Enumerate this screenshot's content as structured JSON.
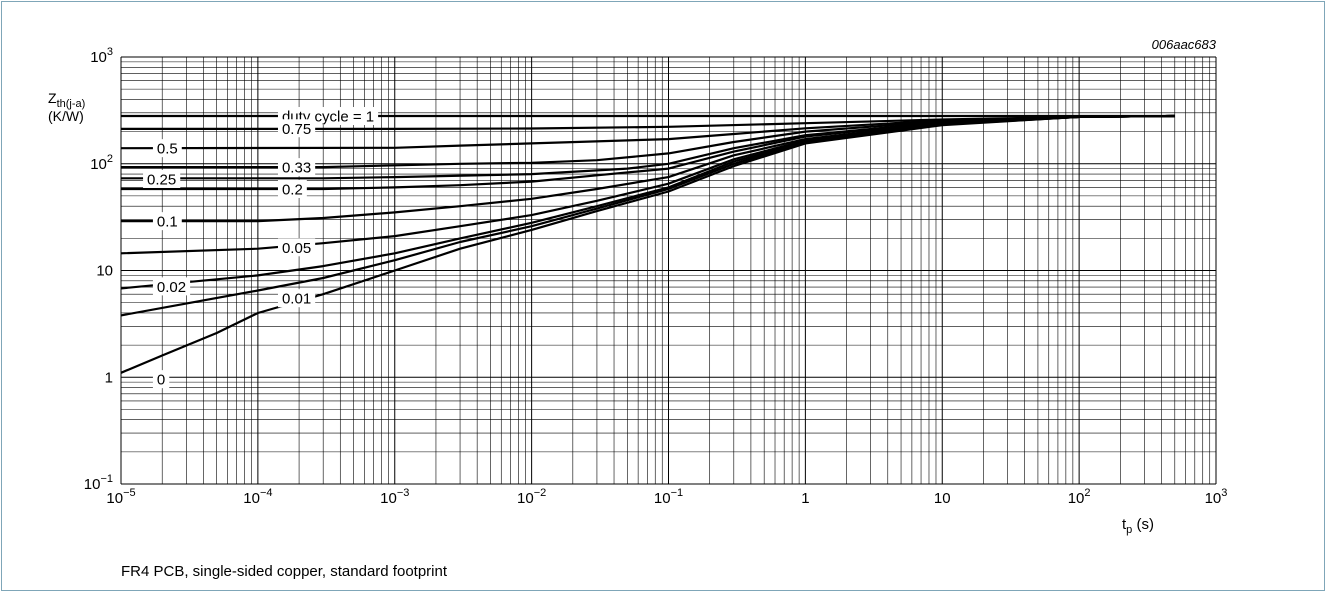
{
  "chart_data": {
    "type": "line",
    "figure_code": "006aac683",
    "ylabel_main": "Z",
    "ylabel_sub": "th(j-a)",
    "yunit": "(K/W)",
    "xlabel_main": "t",
    "xlabel_sub": "p",
    "xunit": "(s)",
    "x_scale": "log",
    "y_scale": "log",
    "xlim": [
      1e-05,
      1000
    ],
    "ylim": [
      0.1,
      1000
    ],
    "grid": true,
    "x_ticks": [
      {
        "value": 1e-05,
        "base": "10",
        "exp": "−5"
      },
      {
        "value": 0.0001,
        "base": "10",
        "exp": "−4"
      },
      {
        "value": 0.001,
        "base": "10",
        "exp": "−3"
      },
      {
        "value": 0.01,
        "base": "10",
        "exp": "−2"
      },
      {
        "value": 0.1,
        "base": "10",
        "exp": "−1"
      },
      {
        "value": 1,
        "base": "1",
        "exp": ""
      },
      {
        "value": 10,
        "base": "10",
        "exp": ""
      },
      {
        "value": 100,
        "base": "10",
        "exp": "2"
      },
      {
        "value": 1000,
        "base": "10",
        "exp": "3"
      }
    ],
    "y_ticks": [
      {
        "value": 1000,
        "base": "10",
        "exp": "3"
      },
      {
        "value": 100,
        "base": "10",
        "exp": "2"
      },
      {
        "value": 10,
        "base": "10",
        "exp": ""
      },
      {
        "value": 1,
        "base": "1",
        "exp": ""
      },
      {
        "value": 0.1,
        "base": "10",
        "exp": "−1"
      }
    ],
    "series": [
      {
        "name": "duty cycle = 1",
        "label_at": [
          0.00015,
          280
        ],
        "points": [
          [
            1e-05,
            280
          ],
          [
            500,
            280
          ]
        ]
      },
      {
        "name": "0.75",
        "label_at": [
          0.00015,
          215
        ],
        "points": [
          [
            1e-05,
            212
          ],
          [
            0.001,
            212
          ],
          [
            0.01,
            214
          ],
          [
            0.1,
            222
          ],
          [
            1,
            240
          ],
          [
            10,
            260
          ],
          [
            100,
            275
          ],
          [
            500,
            280
          ]
        ]
      },
      {
        "name": "0.5",
        "label_at": [
          1.83e-05,
          140
        ],
        "points": [
          [
            1e-05,
            140
          ],
          [
            0.001,
            141
          ],
          [
            0.003,
            148
          ],
          [
            0.01,
            155
          ],
          [
            0.1,
            170
          ],
          [
            0.3,
            190
          ],
          [
            1,
            215
          ],
          [
            10,
            255
          ],
          [
            100,
            275
          ],
          [
            500,
            280
          ]
        ]
      },
      {
        "name": "0.33",
        "label_at": [
          0.00015,
          93
        ],
        "points": [
          [
            1e-05,
            93
          ],
          [
            0.0003,
            93
          ],
          [
            0.003,
            100
          ],
          [
            0.01,
            102
          ],
          [
            0.03,
            108
          ],
          [
            0.1,
            125
          ],
          [
            0.3,
            160
          ],
          [
            1,
            200
          ],
          [
            10,
            250
          ],
          [
            100,
            275
          ],
          [
            500,
            280
          ]
        ]
      },
      {
        "name": "0.25",
        "label_at": [
          1.55e-05,
          72
        ],
        "points": [
          [
            1e-05,
            73
          ],
          [
            0.0003,
            73
          ],
          [
            0.001,
            75
          ],
          [
            0.01,
            80
          ],
          [
            0.05,
            90
          ],
          [
            0.1,
            100
          ],
          [
            0.3,
            140
          ],
          [
            1,
            185
          ],
          [
            10,
            245
          ],
          [
            100,
            275
          ],
          [
            500,
            280
          ]
        ]
      },
      {
        "name": "0.2",
        "label_at": [
          0.00015,
          58
        ],
        "points": [
          [
            1e-05,
            58
          ],
          [
            0.0003,
            58
          ],
          [
            0.001,
            60
          ],
          [
            0.003,
            63
          ],
          [
            0.01,
            68
          ],
          [
            0.03,
            78
          ],
          [
            0.1,
            90
          ],
          [
            0.3,
            130
          ],
          [
            1,
            180
          ],
          [
            10,
            245
          ],
          [
            100,
            275
          ],
          [
            500,
            280
          ]
        ]
      },
      {
        "name": "0.1",
        "label_at": [
          1.83e-05,
          29
        ],
        "points": [
          [
            1e-05,
            29
          ],
          [
            0.0001,
            29
          ],
          [
            0.0003,
            31
          ],
          [
            0.001,
            35
          ],
          [
            0.003,
            40
          ],
          [
            0.01,
            47
          ],
          [
            0.03,
            58
          ],
          [
            0.1,
            75
          ],
          [
            0.3,
            120
          ],
          [
            1,
            170
          ],
          [
            10,
            240
          ],
          [
            100,
            275
          ],
          [
            500,
            280
          ]
        ]
      },
      {
        "name": "0.05",
        "label_at": [
          0.00015,
          16.5
        ],
        "points": [
          [
            1e-05,
            14.5
          ],
          [
            0.0001,
            16
          ],
          [
            0.0003,
            18
          ],
          [
            0.001,
            21
          ],
          [
            0.003,
            26
          ],
          [
            0.01,
            33
          ],
          [
            0.03,
            45
          ],
          [
            0.1,
            65
          ],
          [
            0.3,
            110
          ],
          [
            1,
            165
          ],
          [
            10,
            235
          ],
          [
            100,
            275
          ],
          [
            500,
            280
          ]
        ]
      },
      {
        "name": "0.02",
        "label_at": [
          1.83e-05,
          7.1
        ],
        "points": [
          [
            1e-05,
            6.8
          ],
          [
            0.0001,
            9
          ],
          [
            0.0003,
            11
          ],
          [
            0.001,
            14.5
          ],
          [
            0.003,
            20
          ],
          [
            0.01,
            28
          ],
          [
            0.03,
            40
          ],
          [
            0.1,
            60
          ],
          [
            0.3,
            105
          ],
          [
            1,
            160
          ],
          [
            10,
            235
          ],
          [
            100,
            275
          ],
          [
            500,
            280
          ]
        ]
      },
      {
        "name": "0.01",
        "label_at": [
          0.00015,
          5.5
        ],
        "points": [
          [
            1e-05,
            3.8
          ],
          [
            0.0001,
            6.5
          ],
          [
            0.0003,
            8.5
          ],
          [
            0.001,
            12.5
          ],
          [
            0.003,
            18.5
          ],
          [
            0.01,
            26
          ],
          [
            0.03,
            38
          ],
          [
            0.1,
            58
          ],
          [
            0.3,
            100
          ],
          [
            1,
            158
          ],
          [
            10,
            232
          ],
          [
            100,
            275
          ],
          [
            500,
            280
          ]
        ]
      },
      {
        "name": "0",
        "label_at": [
          1.83e-05,
          0.96
        ],
        "points": [
          [
            1e-05,
            1.1
          ],
          [
            2e-05,
            1.6
          ],
          [
            5e-05,
            2.6
          ],
          [
            0.0001,
            4
          ],
          [
            0.0003,
            6
          ],
          [
            0.001,
            10
          ],
          [
            0.003,
            16
          ],
          [
            0.01,
            24
          ],
          [
            0.03,
            36
          ],
          [
            0.1,
            55
          ],
          [
            0.3,
            95
          ],
          [
            1,
            155
          ],
          [
            10,
            230
          ],
          [
            100,
            275
          ],
          [
            500,
            280
          ]
        ]
      }
    ]
  },
  "footnote": "FR4 PCB, single-sided copper, standard footprint"
}
